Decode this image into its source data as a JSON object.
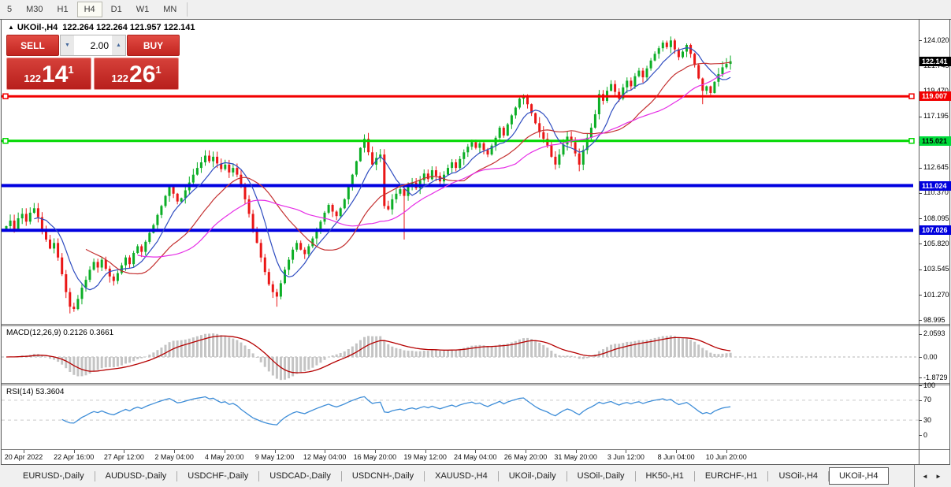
{
  "toolbar": {
    "timeframes": [
      "5",
      "M30",
      "H1",
      "H4",
      "D1",
      "W1",
      "MN"
    ],
    "active": "H4"
  },
  "chart_header": {
    "collapse_icon": "▲",
    "title": "UKOil-,H4",
    "ohlc": "122.264 122.264 121.957 122.141"
  },
  "trade_panel": {
    "sell_label": "SELL",
    "buy_label": "BUY",
    "volume": "2.00",
    "volume_down_icon": "▼",
    "volume_up_icon": "▲",
    "sell_price": {
      "big_figure": "122",
      "pips": "14",
      "pipette": "1"
    },
    "buy_price": {
      "big_figure": "122",
      "pips": "26",
      "pipette": "1"
    }
  },
  "price_axis": {
    "ticks": [
      "124.020",
      "121.745",
      "119.470",
      "117.195",
      "114.920",
      "112.645",
      "110.370",
      "108.095",
      "105.820",
      "103.545",
      "101.270",
      "98.995"
    ],
    "badges": [
      {
        "label": "122.141",
        "price": 122.141,
        "bg": "#000000",
        "fg": "#ffffff"
      },
      {
        "label": "119.007",
        "price": 119.007,
        "bg": "#f20000",
        "fg": "#ffffff"
      },
      {
        "label": "115.021",
        "price": 115.021,
        "bg": "#00dd3c",
        "fg": "#000000"
      },
      {
        "label": "111.024",
        "price": 111.024,
        "bg": "#0000dd",
        "fg": "#ffffff"
      },
      {
        "label": "107.026",
        "price": 107.026,
        "bg": "#0000dd",
        "fg": "#ffffff"
      }
    ]
  },
  "macd_panel": {
    "label": "MACD(12,26,9) 0.2126 0.3661",
    "axis": [
      2.0593,
      0.0,
      -1.8729
    ],
    "axis_labels": [
      "2.0593",
      "0.00",
      "-1.8729"
    ]
  },
  "rsi_panel": {
    "label": "RSI(14) 53.3604",
    "axis": [
      100,
      70,
      30,
      0
    ],
    "axis_labels": [
      "100",
      "70",
      "30",
      "0"
    ]
  },
  "time_axis": {
    "labels": [
      "20 Apr 2022",
      "22 Apr 16:00",
      "27 Apr 12:00",
      "2 May 04:00",
      "4 May 20:00",
      "9 May 12:00",
      "12 May 04:00",
      "16 May 20:00",
      "19 May 12:00",
      "24 May 04:00",
      "26 May 20:00",
      "31 May 20:00",
      "3 Jun 12:00",
      "8 Jun 04:00",
      "10 Jun 20:00"
    ]
  },
  "tabs": {
    "items": [
      "EURUSD-,Daily",
      "AUDUSD-,Daily",
      "USDCHF-,Daily",
      "USDCAD-,Daily",
      "USDCNH-,Daily",
      "XAUUSD-,H4",
      "UKOil-,Daily",
      "USOil-,Daily",
      "HK50-,H1",
      "EURCHF-,H1",
      "USOil-,H4",
      "UKOil-,H4"
    ],
    "active_index": 11,
    "scroll_left_icon": "◄",
    "scroll_right_icon": "►"
  },
  "chart_data": {
    "type": "candlestick",
    "symbol": "UKOil-",
    "period": "H4",
    "last_price": 122.141,
    "y_axis_range": [
      98.995,
      124.02
    ],
    "closes": [
      107.4,
      107.9,
      107.1,
      108.1,
      108.5,
      107.8,
      108.6,
      109.0,
      108.2,
      107.0,
      106.2,
      105.4,
      105.9,
      104.6,
      103.1,
      101.5,
      100.2,
      100.0,
      100.9,
      101.9,
      102.6,
      103.5,
      104.2,
      103.7,
      104.4,
      103.6,
      102.9,
      102.5,
      103.2,
      103.9,
      104.6,
      104.0,
      105.0,
      105.6,
      105.1,
      106.0,
      106.8,
      107.5,
      108.4,
      109.2,
      110.1,
      110.9,
      110.3,
      109.6,
      109.9,
      110.6,
      111.3,
      112.0,
      112.6,
      113.1,
      113.7,
      113.2,
      113.6,
      113.0,
      112.5,
      112.9,
      112.2,
      112.6,
      112.0,
      110.9,
      109.8,
      108.5,
      107.0,
      105.9,
      104.6,
      103.3,
      102.2,
      101.5,
      101.1,
      102.3,
      103.5,
      104.4,
      105.3,
      105.9,
      105.3,
      104.9,
      105.6,
      106.3,
      107.1,
      107.8,
      108.6,
      109.3,
      108.7,
      108.3,
      109.0,
      109.8,
      110.9,
      112.0,
      113.2,
      114.4,
      115.2,
      114.0,
      112.9,
      113.5,
      113.8,
      109.2,
      108.9,
      109.8,
      110.3,
      110.7,
      110.1,
      110.9,
      111.3,
      110.8,
      111.5,
      112.1,
      111.6,
      112.4,
      111.9,
      111.4,
      112.0,
      112.6,
      113.1,
      112.6,
      113.4,
      114.0,
      114.5,
      114.9,
      114.4,
      114.8,
      114.2,
      113.8,
      114.6,
      115.3,
      116.2,
      115.5,
      116.5,
      117.3,
      118.0,
      118.8,
      119.1,
      118.3,
      117.5,
      116.6,
      115.8,
      115.2,
      114.6,
      113.6,
      112.9,
      113.8,
      114.7,
      115.4,
      114.9,
      113.9,
      112.9,
      114.2,
      115.3,
      116.2,
      117.4,
      119.2,
      118.6,
      119.5,
      120.1,
      119.4,
      118.8,
      119.8,
      120.4,
      119.9,
      120.8,
      121.3,
      120.7,
      121.5,
      122.2,
      122.8,
      123.3,
      123.8,
      123.4,
      124.0,
      123.2,
      122.5,
      123.0,
      123.6,
      122.8,
      121.8,
      120.6,
      119.5,
      119.9,
      119.3,
      120.3,
      121.0,
      121.6,
      121.9,
      122.14
    ],
    "wick_overrides": {
      "16": {
        "l": 99.6
      },
      "68": {
        "l": 100.2
      },
      "90": {
        "h": 115.6
      },
      "100": {
        "l": 106.2
      },
      "144": {
        "l": 112.3
      },
      "167": {
        "h": 124.35
      },
      "175": {
        "l": 118.3
      }
    },
    "hlines": [
      {
        "price": 119.007,
        "color": "#f20000",
        "width": 3,
        "handles": true
      },
      {
        "price": 115.021,
        "color": "#00d800",
        "width": 3,
        "handles": true
      },
      {
        "price": 111.024,
        "color": "#0000e0",
        "width": 4,
        "handles": false
      },
      {
        "price": 107.026,
        "color": "#0000e0",
        "width": 4,
        "handles": false
      }
    ],
    "moving_averages": [
      {
        "period": 8,
        "color": "#2e4cc0"
      },
      {
        "period": 21,
        "color": "#c43030"
      },
      {
        "period": 34,
        "color": "#e62ee6"
      }
    ],
    "indicators": {
      "macd": {
        "fast": 12,
        "slow": 26,
        "signal": 9,
        "value": 0.2126,
        "signal_value": 0.3661,
        "histogram_color": "#c4c4c4",
        "signal_color": "#b50000"
      },
      "rsi": {
        "period": 14,
        "value": 53.3604,
        "line_color": "#3f8ed8",
        "levels": [
          70,
          30
        ]
      }
    },
    "colors": {
      "up": "#0cae26",
      "down": "#ea1616",
      "background": "#ffffff"
    }
  }
}
